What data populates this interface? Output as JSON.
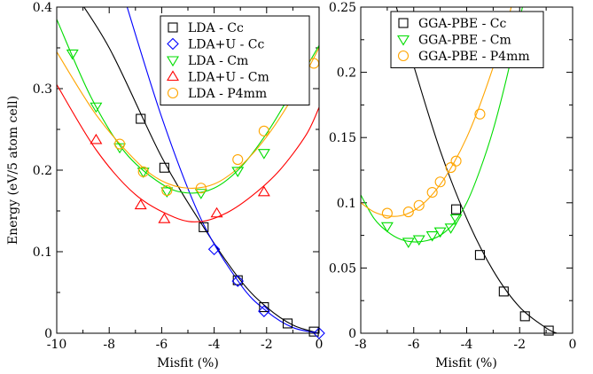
{
  "chart_data": [
    {
      "type": "scatter",
      "xlabel": "Misfit (%)",
      "ylabel": "Energy (eV/5 atom cell)",
      "xlim": [
        -10,
        0
      ],
      "ylim": [
        0,
        0.4
      ],
      "xticks": [
        -10,
        -8,
        -6,
        -4,
        -2,
        0
      ],
      "yticks": [
        0,
        0.1,
        0.2,
        0.3,
        0.4
      ],
      "xtick_labels": [
        "-10",
        "-8",
        "-6",
        "-4",
        "-2",
        "0"
      ],
      "ytick_labels": [
        "0",
        "0.1",
        "0.2",
        "0.3",
        "0.4"
      ],
      "legend_position": "top-right",
      "series": [
        {
          "name": "LDA - Cc",
          "marker": "square",
          "color": "#000000",
          "points": [
            [
              -6.8,
              0.263
            ],
            [
              -5.9,
              0.203
            ],
            [
              -4.4,
              0.13
            ],
            [
              -3.1,
              0.065
            ],
            [
              -2.1,
              0.032
            ],
            [
              -1.2,
              0.012
            ],
            [
              -0.2,
              0.002
            ]
          ],
          "fit": [
            [
              -9.6,
              0.43
            ],
            [
              -8.0,
              0.35
            ],
            [
              -6.0,
              0.216
            ],
            [
              -4.4,
              0.13
            ],
            [
              -3.0,
              0.065
            ],
            [
              -2.0,
              0.032
            ],
            [
              -1.0,
              0.01
            ],
            [
              0.0,
              0.0
            ]
          ]
        },
        {
          "name": "LDA+U - Cc",
          "marker": "diamond",
          "color": "#0000ff",
          "points": [
            [
              -4.0,
              0.103
            ],
            [
              -3.1,
              0.064
            ],
            [
              -2.1,
              0.027
            ],
            [
              0.0,
              0.0
            ]
          ],
          "fit": [
            [
              -7.6,
              0.43
            ],
            [
              -6.0,
              0.265
            ],
            [
              -4.5,
              0.14
            ],
            [
              -3.0,
              0.06
            ],
            [
              -2.0,
              0.027
            ],
            [
              -1.0,
              0.007
            ],
            [
              0.0,
              0.0
            ]
          ]
        },
        {
          "name": "LDA - Cm",
          "marker": "triangle-down",
          "color": "#00dd00",
          "points": [
            [
              -9.4,
              0.343
            ],
            [
              -8.5,
              0.278
            ],
            [
              -7.6,
              0.228
            ],
            [
              -6.7,
              0.198
            ],
            [
              -5.8,
              0.174
            ],
            [
              -4.5,
              0.172
            ],
            [
              -3.1,
              0.199
            ],
            [
              -2.1,
              0.221
            ]
          ],
          "fit": [
            [
              -10.0,
              0.385
            ],
            [
              -8.7,
              0.29
            ],
            [
              -7.4,
              0.222
            ],
            [
              -6.0,
              0.183
            ],
            [
              -5.0,
              0.172
            ],
            [
              -4.0,
              0.178
            ],
            [
              -3.0,
              0.203
            ],
            [
              -2.0,
              0.245
            ],
            [
              -1.0,
              0.298
            ],
            [
              0.0,
              0.353
            ]
          ]
        },
        {
          "name": "LDA+U - Cm",
          "marker": "triangle-up",
          "color": "#ff0000",
          "points": [
            [
              -8.5,
              0.237
            ],
            [
              -6.8,
              0.157
            ],
            [
              -5.9,
              0.14
            ],
            [
              -3.9,
              0.147
            ],
            [
              -2.1,
              0.173
            ]
          ],
          "fit": [
            [
              -10.0,
              0.305
            ],
            [
              -8.5,
              0.225
            ],
            [
              -7.0,
              0.17
            ],
            [
              -5.5,
              0.142
            ],
            [
              -4.5,
              0.137
            ],
            [
              -3.5,
              0.148
            ],
            [
              -2.5,
              0.17
            ],
            [
              -1.5,
              0.2
            ],
            [
              -0.5,
              0.243
            ],
            [
              0.0,
              0.277
            ]
          ]
        },
        {
          "name": "LDA - P4mm",
          "marker": "circle",
          "color": "#ffa500",
          "points": [
            [
              -7.6,
              0.232
            ],
            [
              -6.7,
              0.198
            ],
            [
              -5.8,
              0.175
            ],
            [
              -4.5,
              0.178
            ],
            [
              -3.1,
              0.213
            ],
            [
              -2.1,
              0.248
            ],
            [
              -0.2,
              0.331
            ]
          ],
          "fit": [
            [
              -10.0,
              0.345
            ],
            [
              -8.5,
              0.268
            ],
            [
              -7.0,
              0.212
            ],
            [
              -6.0,
              0.187
            ],
            [
              -5.0,
              0.178
            ],
            [
              -4.0,
              0.183
            ],
            [
              -3.0,
              0.205
            ],
            [
              -2.0,
              0.241
            ],
            [
              -1.0,
              0.29
            ],
            [
              0.0,
              0.35
            ]
          ]
        }
      ]
    },
    {
      "type": "scatter",
      "xlabel": "Misfit (%)",
      "ylabel": "",
      "xlim": [
        -8,
        0
      ],
      "ylim": [
        0,
        0.25
      ],
      "xticks": [
        -8,
        -6,
        -4,
        -2,
        0
      ],
      "yticks": [
        0,
        0.05,
        0.1,
        0.15,
        0.2,
        0.25
      ],
      "xtick_labels": [
        "-8",
        "-6",
        "-4",
        "-2",
        "0"
      ],
      "ytick_labels": [
        "0",
        "0.05",
        "0.1",
        "0.15",
        "0.2",
        "0.25"
      ],
      "legend_position": "top-right",
      "series": [
        {
          "name": "GGA-PBE - Cc",
          "marker": "square",
          "color": "#000000",
          "points": [
            [
              -4.4,
              0.095
            ],
            [
              -3.5,
              0.06
            ],
            [
              -2.6,
              0.032
            ],
            [
              -1.8,
              0.013
            ],
            [
              -0.9,
              0.002
            ]
          ],
          "fit": [
            [
              -6.8,
              0.26
            ],
            [
              -6.0,
              0.205
            ],
            [
              -5.0,
              0.14
            ],
            [
              -4.0,
              0.088
            ],
            [
              -3.0,
              0.048
            ],
            [
              -2.0,
              0.02
            ],
            [
              -1.0,
              0.004
            ],
            [
              -0.6,
              0.0
            ]
          ]
        },
        {
          "name": "GGA-PBE - Cm",
          "marker": "triangle-down",
          "color": "#00dd00",
          "points": [
            [
              -7.0,
              0.082
            ],
            [
              -6.2,
              0.07
            ],
            [
              -5.8,
              0.072
            ],
            [
              -5.3,
              0.075
            ],
            [
              -5.0,
              0.078
            ],
            [
              -4.6,
              0.081
            ],
            [
              -4.4,
              0.088
            ]
          ],
          "fit": [
            [
              -8.0,
              0.106
            ],
            [
              -7.5,
              0.088
            ],
            [
              -7.0,
              0.078
            ],
            [
              -6.5,
              0.072
            ],
            [
              -6.0,
              0.07
            ],
            [
              -5.5,
              0.071
            ],
            [
              -5.0,
              0.075
            ],
            [
              -4.5,
              0.084
            ],
            [
              -4.0,
              0.1
            ],
            [
              -3.5,
              0.125
            ],
            [
              -3.0,
              0.156
            ],
            [
              -2.5,
              0.195
            ],
            [
              -2.0,
              0.24
            ],
            [
              -1.8,
              0.26
            ]
          ]
        },
        {
          "name": "GGA-PBE - P4mm",
          "marker": "circle",
          "color": "#ffa500",
          "points": [
            [
              -7.0,
              0.092
            ],
            [
              -6.2,
              0.093
            ],
            [
              -5.8,
              0.098
            ],
            [
              -5.3,
              0.108
            ],
            [
              -5.0,
              0.116
            ],
            [
              -4.6,
              0.127
            ],
            [
              -4.4,
              0.132
            ],
            [
              -3.5,
              0.168
            ]
          ],
          "fit": [
            [
              -8.0,
              0.1
            ],
            [
              -7.5,
              0.093
            ],
            [
              -7.0,
              0.09
            ],
            [
              -6.5,
              0.09
            ],
            [
              -6.0,
              0.094
            ],
            [
              -5.5,
              0.102
            ],
            [
              -5.0,
              0.114
            ],
            [
              -4.5,
              0.13
            ],
            [
              -4.0,
              0.15
            ],
            [
              -3.5,
              0.175
            ],
            [
              -3.0,
              0.204
            ],
            [
              -2.5,
              0.236
            ],
            [
              -2.2,
              0.26
            ]
          ]
        }
      ]
    }
  ]
}
